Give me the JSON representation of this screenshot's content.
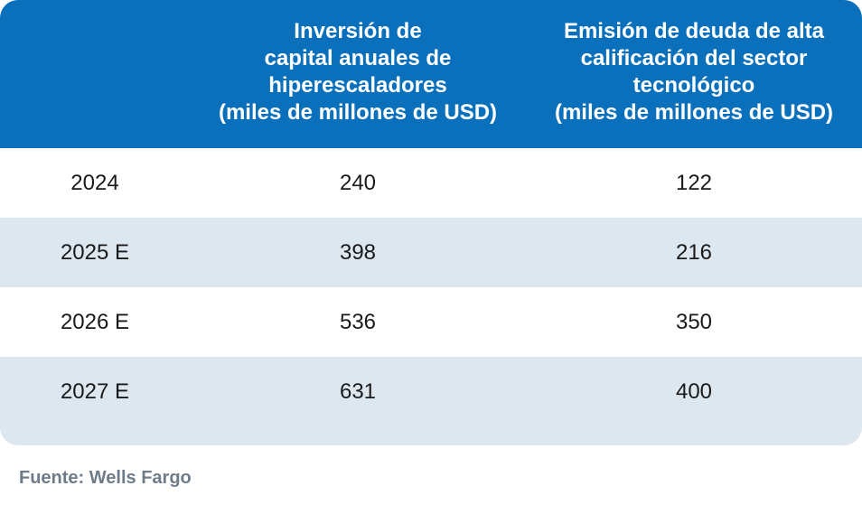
{
  "table": {
    "headers": [
      {
        "lines": [
          ""
        ]
      },
      {
        "lines": [
          "Inversión de",
          "capital anuales de",
          "hiperescaladores",
          "(miles de millones de USD)"
        ]
      },
      {
        "lines": [
          "Emisión de deuda de alta",
          "calificación del sector",
          "tecnológico",
          "(miles de millones de USD)"
        ]
      }
    ],
    "rows": [
      {
        "year": "2024",
        "capex": "240",
        "debt": "122"
      },
      {
        "year": "2025 E",
        "capex": "398",
        "debt": "216"
      },
      {
        "year": "2026 E",
        "capex": "536",
        "debt": "350"
      },
      {
        "year": "2027 E",
        "capex": "631",
        "debt": "400"
      }
    ]
  },
  "source": "Fuente: Wells Fargo",
  "colors": {
    "header_bg": "#0a70bb",
    "row_shade": "#dde7ef",
    "source_text": "#6e7c8a"
  }
}
